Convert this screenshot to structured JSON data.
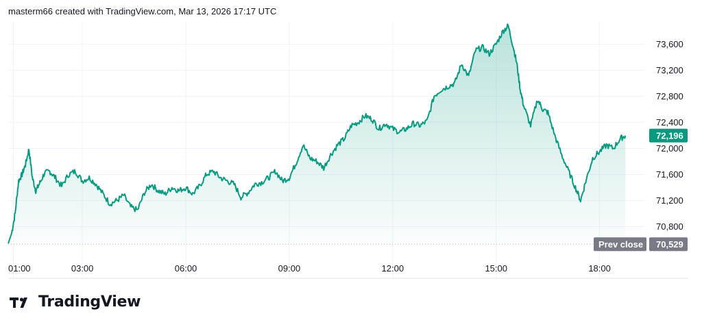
{
  "header": {
    "text": "masterm66 created with TradingView.com, Mar 13, 2026 17:17 UTC"
  },
  "footer": {
    "logo_text": "TradingView"
  },
  "colors": {
    "line": "#089981",
    "fill_top": "#089981",
    "grid": "#f0f3fa",
    "prev_close_badge": "#787b86",
    "last_badge": "#089981"
  },
  "chart_data": {
    "type": "area",
    "x_ticks": [
      "01:00",
      "03:00",
      "06:00",
      "09:00",
      "12:00",
      "15:00",
      "18:00"
    ],
    "x_tick_hours": [
      1,
      3,
      6,
      9,
      12,
      15,
      18
    ],
    "y_ticks": [
      "70,800",
      "71,200",
      "71,600",
      "72,000",
      "72,400",
      "72,800",
      "73,200",
      "73,600"
    ],
    "y_tick_values": [
      70800,
      71200,
      71600,
      72000,
      72400,
      72800,
      73200,
      73600
    ],
    "ylim": [
      70490,
      73940
    ],
    "xlim": [
      0.85,
      19.3
    ],
    "prev_close": {
      "label": "Prev close",
      "value_label": "70,529",
      "value": 70529
    },
    "last": {
      "value_label": "72,196",
      "value": 72196
    },
    "x": [
      0.85,
      0.95,
      1.05,
      1.15,
      1.25,
      1.35,
      1.45,
      1.55,
      1.65,
      1.75,
      1.9,
      2.05,
      2.2,
      2.4,
      2.6,
      2.8,
      3.0,
      3.2,
      3.4,
      3.6,
      3.8,
      4.0,
      4.2,
      4.4,
      4.6,
      4.8,
      5.0,
      5.2,
      5.4,
      5.6,
      5.8,
      6.0,
      6.2,
      6.4,
      6.6,
      6.8,
      7.0,
      7.2,
      7.4,
      7.6,
      7.8,
      8.0,
      8.2,
      8.4,
      8.6,
      8.8,
      9.0,
      9.2,
      9.4,
      9.6,
      9.8,
      10.0,
      10.2,
      10.4,
      10.6,
      10.8,
      11.0,
      11.2,
      11.4,
      11.6,
      11.8,
      12.0,
      12.2,
      12.4,
      12.6,
      12.8,
      13.0,
      13.2,
      13.4,
      13.6,
      13.8,
      14.0,
      14.2,
      14.4,
      14.6,
      14.8,
      15.0,
      15.2,
      15.35,
      15.5,
      15.6,
      15.7,
      15.8,
      16.0,
      16.2,
      16.35,
      16.5,
      16.7,
      16.9,
      17.1,
      17.3,
      17.45,
      17.6,
      17.8,
      18.0,
      18.2,
      18.4,
      18.6,
      18.75
    ],
    "y": [
      70540,
      70700,
      71000,
      71500,
      71600,
      71750,
      71990,
      71550,
      71350,
      71450,
      71620,
      71650,
      71560,
      71420,
      71600,
      71650,
      71500,
      71550,
      71450,
      71300,
      71150,
      71200,
      71280,
      71100,
      71050,
      71320,
      71450,
      71350,
      71300,
      71400,
      71350,
      71400,
      71300,
      71420,
      71600,
      71650,
      71550,
      71500,
      71450,
      71250,
      71320,
      71450,
      71480,
      71550,
      71650,
      71500,
      71550,
      71780,
      72050,
      71850,
      71800,
      71700,
      71900,
      72050,
      72150,
      72350,
      72400,
      72500,
      72450,
      72300,
      72380,
      72300,
      72250,
      72300,
      72380,
      72350,
      72420,
      72800,
      72900,
      72950,
      73000,
      73300,
      73100,
      73500,
      73550,
      73450,
      73600,
      73800,
      73880,
      73550,
      73300,
      72900,
      72650,
      72350,
      72750,
      72600,
      72550,
      72200,
      71900,
      71650,
      71400,
      71200,
      71500,
      71850,
      71950,
      72050,
      72000,
      72150,
      72196
    ]
  }
}
